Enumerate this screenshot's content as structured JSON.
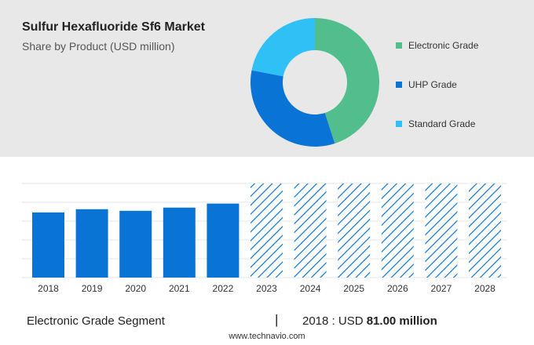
{
  "header": {
    "title": "Sulfur Hexafluoride Sf6 Market",
    "subtitle": "Share by Product (USD million)"
  },
  "legend": [
    {
      "label": "Electronic Grade",
      "color": "#52be8e"
    },
    {
      "label": "UHP Grade",
      "color": "#0a74d6"
    },
    {
      "label": "Standard Grade",
      "color": "#2fc0f5"
    }
  ],
  "footer": {
    "segment": "Electronic Grade Segment",
    "separator": "|",
    "year_label": "2018 : USD",
    "value_label": "81.00 million",
    "source": "www.technavio.com"
  },
  "chart_data": [
    {
      "type": "pie",
      "subtype": "donut",
      "labels": [
        "Electronic Grade",
        "UHP Grade",
        "Standard Grade"
      ],
      "values": [
        45,
        33,
        22
      ],
      "colors": [
        "#52be8e",
        "#0a74d6",
        "#2fc0f5"
      ]
    },
    {
      "type": "bar",
      "categories": [
        "2018",
        "2019",
        "2020",
        "2021",
        "2022",
        "2023",
        "2024",
        "2025",
        "2026",
        "2027",
        "2028"
      ],
      "values": [
        81,
        85,
        83,
        87,
        92,
        null,
        null,
        null,
        null,
        null,
        null
      ],
      "forecast_categories": [
        "2023",
        "2024",
        "2025",
        "2026",
        "2027",
        "2028"
      ],
      "bar_color": "#0a74d6",
      "forecast_color": "#0a74d6",
      "ylim": [
        0,
        117
      ],
      "grid": true
    }
  ]
}
